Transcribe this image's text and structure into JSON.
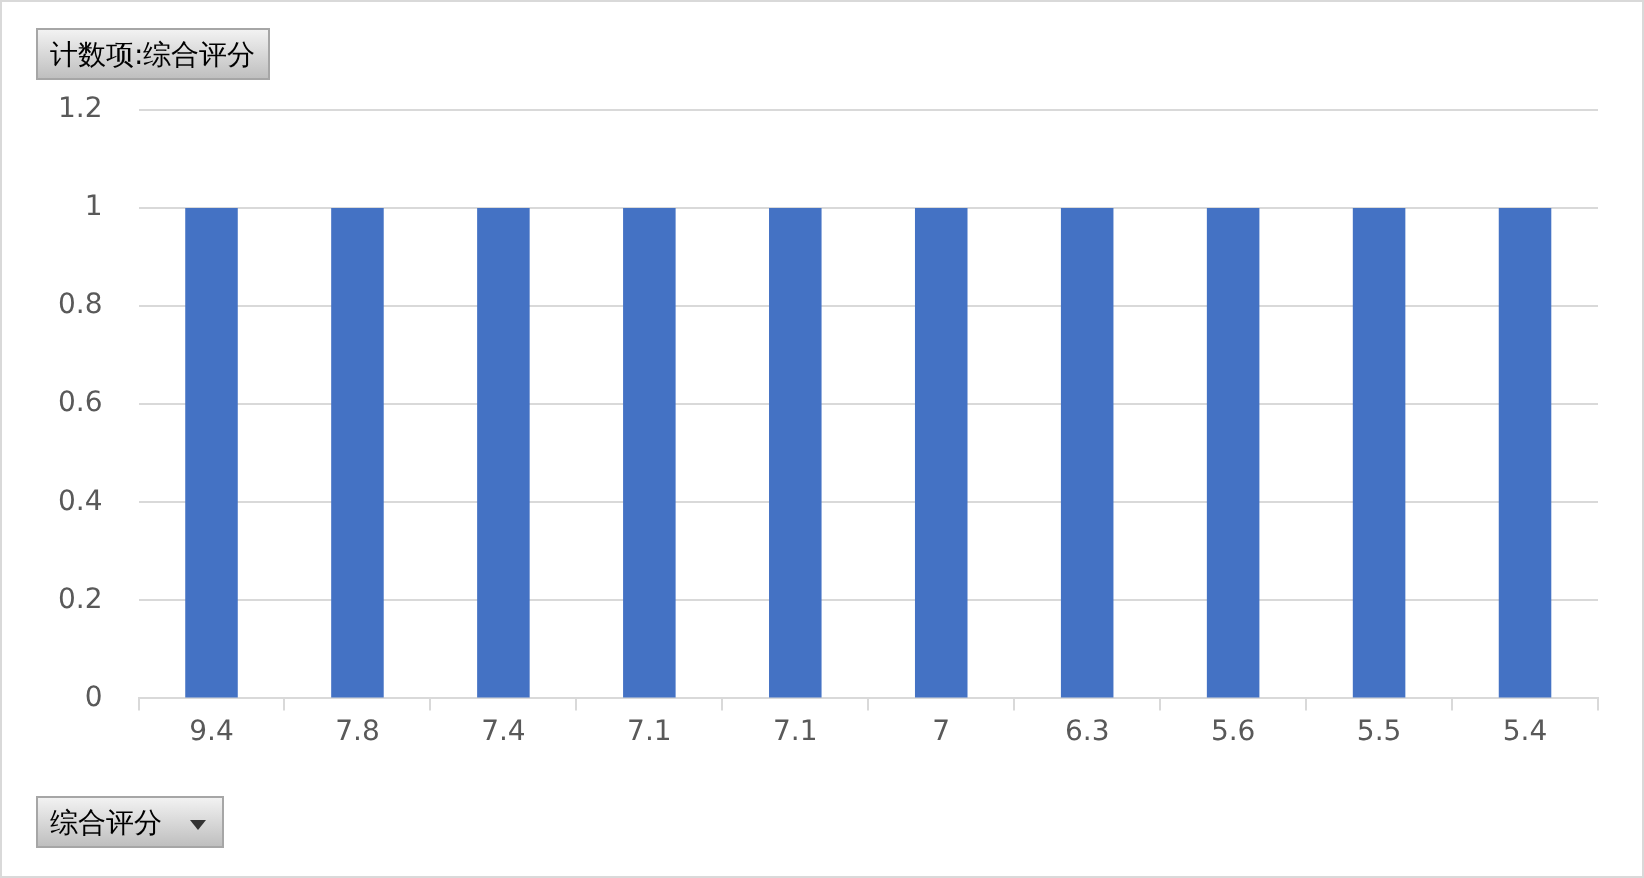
{
  "chart_data": {
    "type": "bar",
    "title": "计数项:综合评分",
    "xlabel": "综合评分",
    "categories": [
      "9.4",
      "7.8",
      "7.4",
      "7.1",
      "7.1",
      "7",
      "6.3",
      "5.6",
      "5.5",
      "5.4"
    ],
    "values": [
      1,
      1,
      1,
      1,
      1,
      1,
      1,
      1,
      1,
      1
    ],
    "color": "#4472c4",
    "ylim": [
      0,
      1.2
    ],
    "yticks": [
      0,
      0.2,
      0.4,
      0.6,
      0.8,
      1,
      1.2
    ],
    "grid": "y",
    "legend": false
  }
}
